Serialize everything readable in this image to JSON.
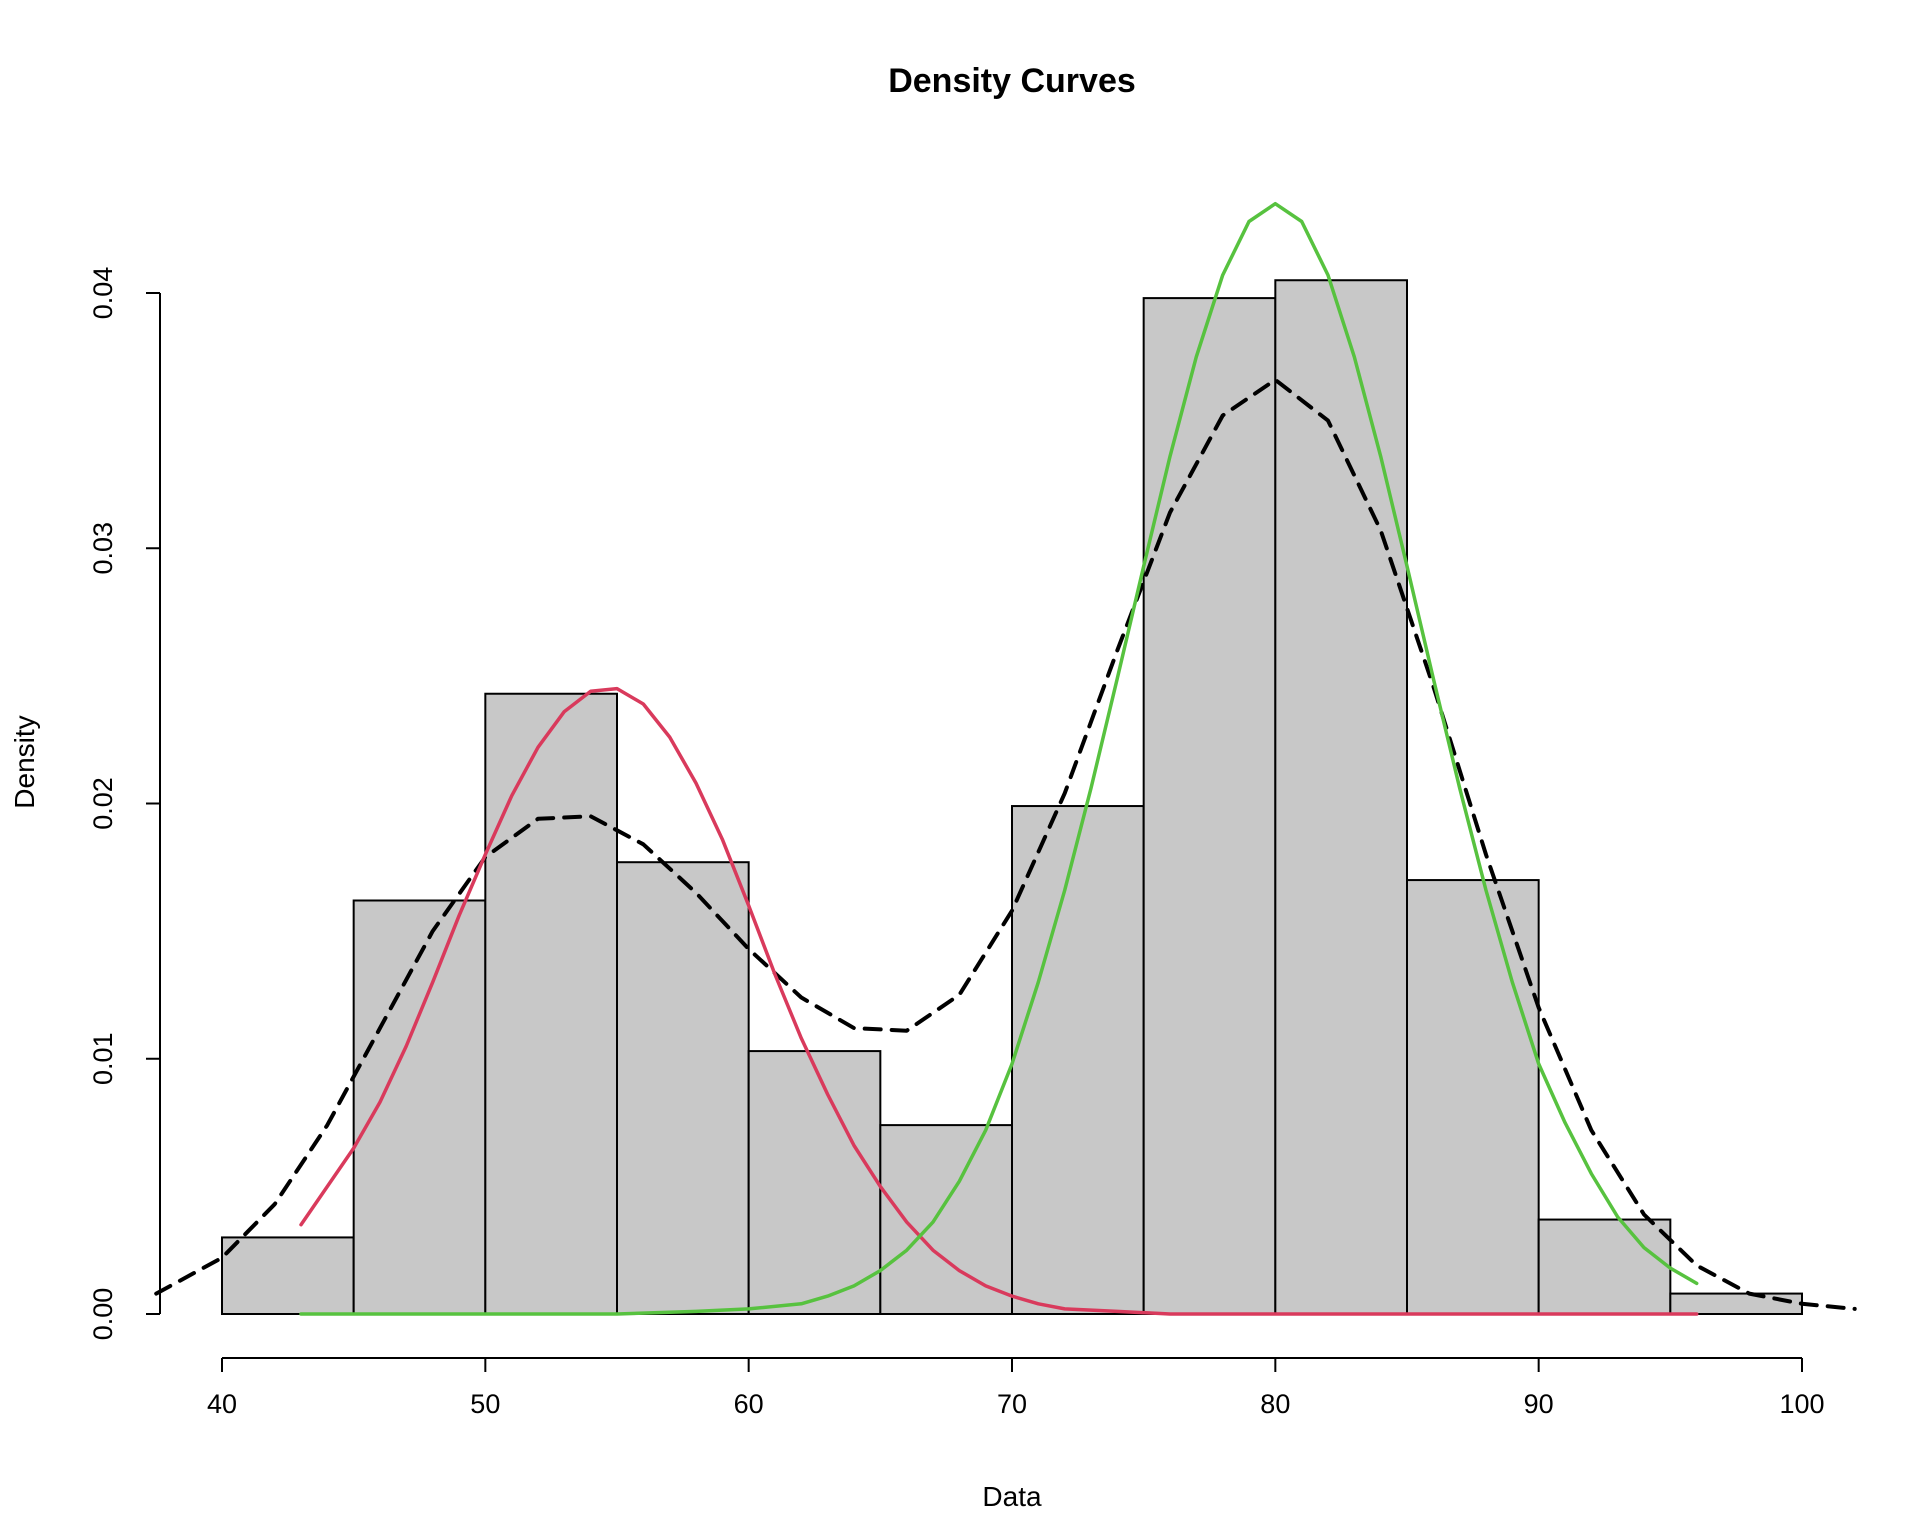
{
  "chart_data": {
    "type": "bar",
    "title": "Density Curves",
    "xlabel": "Data",
    "ylabel": "Density",
    "xlim": [
      40,
      100
    ],
    "ylim": [
      0,
      0.04
    ],
    "x_ticks": [
      40,
      50,
      60,
      70,
      80,
      90,
      100
    ],
    "x_tick_labels": [
      "40",
      "50",
      "60",
      "70",
      "80",
      "90",
      "100"
    ],
    "y_ticks": [
      0,
      0.01,
      0.02,
      0.03,
      0.04
    ],
    "y_tick_labels": [
      "0.00",
      "0.01",
      "0.02",
      "0.03",
      "0.04"
    ],
    "grid": false,
    "histogram": {
      "bin_edges": [
        40,
        45,
        50,
        55,
        60,
        65,
        70,
        75,
        80,
        85,
        90,
        95,
        100
      ],
      "values": [
        0.003,
        0.0162,
        0.0243,
        0.0177,
        0.0103,
        0.0074,
        0.0199,
        0.0398,
        0.0405,
        0.017,
        0.0037,
        0.0008
      ],
      "fill": "#c8c8c8",
      "stroke": "#000000"
    },
    "series": [
      {
        "type": "line",
        "style": "dashed",
        "color": "#000000",
        "x": [
          37.5,
          40,
          42,
          44,
          46,
          48,
          50,
          52,
          54,
          56,
          58,
          60,
          62,
          64,
          66,
          68,
          70,
          72,
          74,
          76,
          78,
          80,
          82,
          84,
          86,
          88,
          90,
          92,
          94,
          96,
          98,
          100,
          102
        ],
        "y": [
          0.0008,
          0.0022,
          0.0043,
          0.0074,
          0.0112,
          0.015,
          0.0179,
          0.0194,
          0.0195,
          0.0184,
          0.0165,
          0.0143,
          0.0124,
          0.0112,
          0.0111,
          0.0125,
          0.0158,
          0.0204,
          0.026,
          0.0314,
          0.0352,
          0.0366,
          0.035,
          0.0307,
          0.0246,
          0.018,
          0.012,
          0.0072,
          0.0039,
          0.0019,
          0.0008,
          0.0004,
          0.0002
        ]
      },
      {
        "type": "line",
        "style": "solid",
        "color": "#d93a5c",
        "x": [
          43,
          45,
          46,
          47,
          48,
          49,
          50,
          51,
          52,
          53,
          54,
          55,
          56,
          57,
          58,
          59,
          60,
          61,
          62,
          63,
          64,
          65,
          66,
          67,
          68,
          69,
          70,
          71,
          72,
          74,
          76,
          80,
          85,
          90,
          96
        ],
        "y": [
          0.0035,
          0.0065,
          0.0083,
          0.0105,
          0.013,
          0.0156,
          0.018,
          0.0203,
          0.0222,
          0.0236,
          0.0244,
          0.0245,
          0.0239,
          0.0226,
          0.0208,
          0.0186,
          0.016,
          0.0133,
          0.0108,
          0.0086,
          0.0066,
          0.005,
          0.0036,
          0.0025,
          0.0017,
          0.0011,
          0.0007,
          0.0004,
          0.0002,
          0.0001,
          0.0,
          0.0,
          0.0,
          0.0,
          0.0
        ]
      },
      {
        "type": "line",
        "style": "solid",
        "color": "#57c23f",
        "x": [
          43,
          50,
          55,
          58,
          60,
          62,
          63,
          64,
          65,
          66,
          67,
          68,
          69,
          70,
          71,
          72,
          73,
          74,
          75,
          76,
          77,
          78,
          79,
          80,
          81,
          82,
          83,
          84,
          85,
          86,
          87,
          88,
          89,
          90,
          91,
          92,
          93,
          94,
          95,
          96
        ],
        "y": [
          0.0,
          0.0,
          0.0,
          0.0001,
          0.0002,
          0.0004,
          0.0007,
          0.0011,
          0.0017,
          0.0025,
          0.0036,
          0.0052,
          0.0072,
          0.0098,
          0.013,
          0.0166,
          0.0206,
          0.0249,
          0.0293,
          0.0336,
          0.0375,
          0.0407,
          0.0428,
          0.0435,
          0.0428,
          0.0407,
          0.0375,
          0.0336,
          0.0293,
          0.0249,
          0.0206,
          0.0166,
          0.013,
          0.0098,
          0.0075,
          0.0055,
          0.0038,
          0.0026,
          0.0018,
          0.0012
        ]
      }
    ]
  }
}
